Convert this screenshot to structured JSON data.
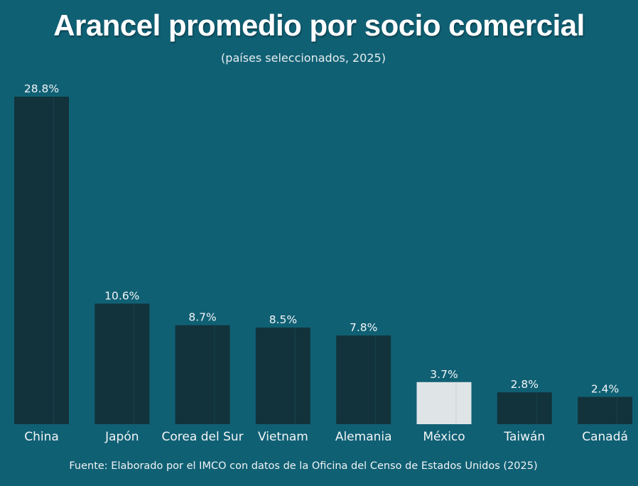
{
  "chart_data": {
    "type": "bar",
    "title": "Arancel promedio por socio comercial",
    "subtitle": "(países seleccionados, 2025)",
    "categories": [
      "China",
      "Japón",
      "Corea del Sur",
      "Vietnam",
      "Alemania",
      "México",
      "Taiwán",
      "Canadá"
    ],
    "values": [
      28.8,
      10.6,
      8.7,
      8.5,
      7.8,
      3.7,
      2.8,
      2.4
    ],
    "data_labels": [
      "28.8%",
      "10.6%",
      "8.7%",
      "8.5%",
      "7.8%",
      "3.7%",
      "2.8%",
      "2.4%"
    ],
    "highlight": "México",
    "xlabel": "",
    "ylabel": "",
    "ylim": [
      0,
      28.8
    ],
    "grid": false,
    "source": "Fuente: Elaborado por el IMCO con datos de la Oficina del Censo de Estados Unidos (2025)"
  },
  "colors": {
    "background": "#106074",
    "bar": "#12333b",
    "highlight": "#dfe5e7"
  }
}
